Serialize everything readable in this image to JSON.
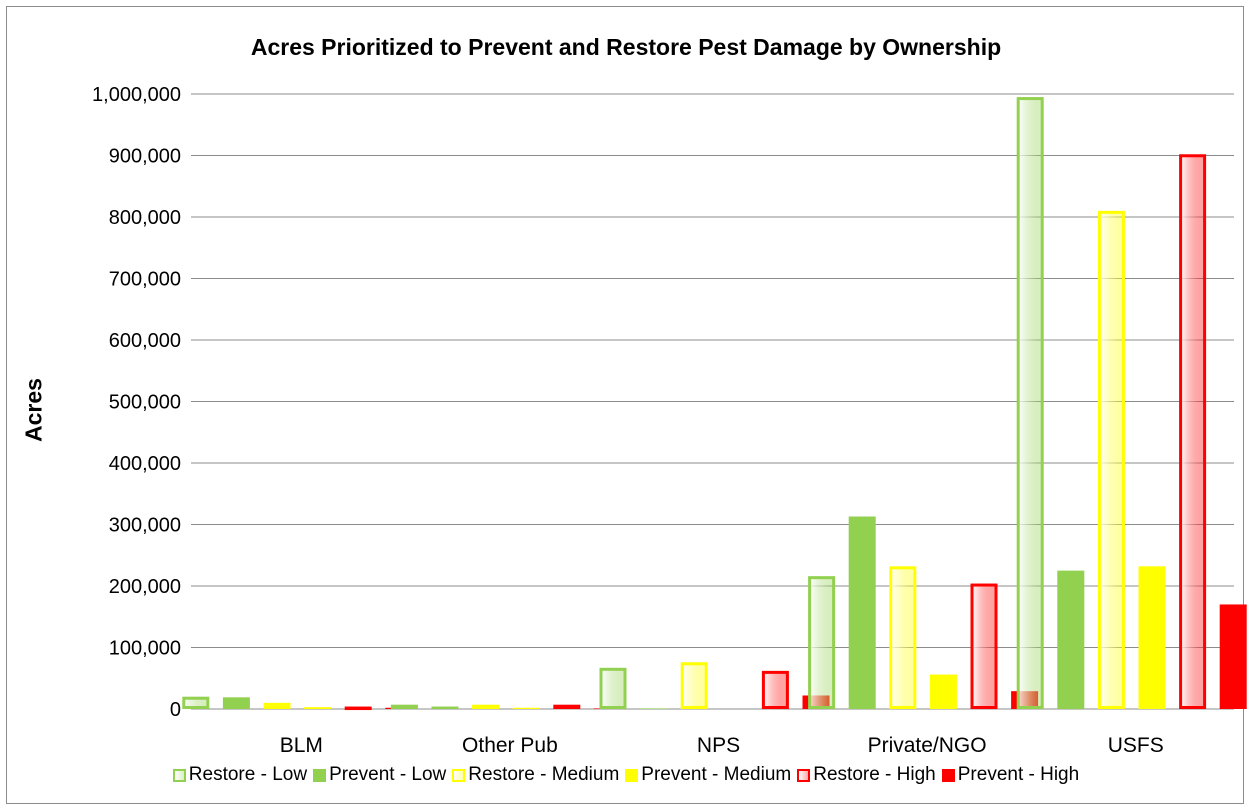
{
  "chart_data": {
    "type": "bar",
    "title": "Acres Prioritized to Prevent and Restore Pest Damage by Ownership",
    "xlabel": "",
    "ylabel": "Acres",
    "ylim": [
      0,
      1000000
    ],
    "yticks": [
      "0",
      "100,000",
      "200,000",
      "300,000",
      "400,000",
      "500,000",
      "600,000",
      "700,000",
      "800,000",
      "900,000",
      "1,000,000"
    ],
    "categories": [
      "BLM",
      "Other Pub",
      "NPS",
      "Private/NGO",
      "USFS"
    ],
    "grid": "horizontal",
    "legend_position": "bottom",
    "series": [
      {
        "name": "Restore - Low",
        "style": "outline",
        "color": "#92d050",
        "values": [
          20000,
          7000,
          67000,
          216000,
          995000
        ]
      },
      {
        "name": "Prevent - Low",
        "style": "solid",
        "color": "#92d050",
        "values": [
          19000,
          4000,
          1000,
          313000,
          225000
        ]
      },
      {
        "name": "Restore - Medium",
        "style": "outline",
        "color": "#ffff00",
        "values": [
          10000,
          7000,
          76000,
          232000,
          810000
        ]
      },
      {
        "name": "Prevent - Medium",
        "style": "solid",
        "color": "#ffff00",
        "values": [
          3000,
          2000,
          0,
          56000,
          232000
        ]
      },
      {
        "name": "Restore - High",
        "style": "outline",
        "color": "#ff0000",
        "values": [
          4000,
          7000,
          62000,
          204000,
          902000
        ]
      },
      {
        "name": "Prevent - High",
        "style": "solid",
        "color": "#ff0000",
        "values": [
          2000,
          1000,
          22000,
          29000,
          170000
        ]
      }
    ]
  }
}
